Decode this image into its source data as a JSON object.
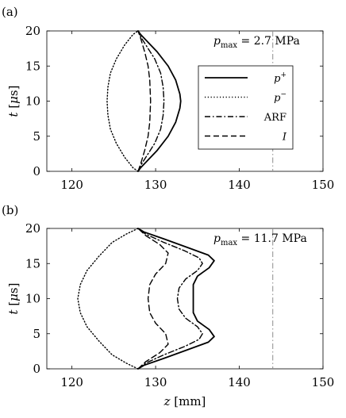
{
  "chart_data": [
    {
      "panel_label": "(a)",
      "type": "line",
      "annotation": "p_max = 2.7 MPa",
      "annotation_parts": {
        "sym": "p",
        "sub": "max",
        "rest": " = 2.7 MPa"
      },
      "xlabel": "z [mm]",
      "ylabel": "t [μs]",
      "xlim": [
        117,
        150
      ],
      "ylim": [
        0,
        20
      ],
      "xticks": [
        120,
        130,
        140,
        150
      ],
      "yticks": [
        0,
        5,
        10,
        15,
        20
      ],
      "reference_line_x": 144,
      "legend": {
        "placement": "right",
        "entries": [
          {
            "label": "p+",
            "sym": "p",
            "sup": "+"
          },
          {
            "label": "p−",
            "sym": "p",
            "sup": "−"
          },
          {
            "label": "ARF"
          },
          {
            "label": "I",
            "italic": true
          }
        ]
      },
      "series": [
        {
          "name": "p+",
          "style": "solid",
          "points": [
            [
              127.9,
              0
            ],
            [
              128.2,
              0.5
            ],
            [
              129.0,
              1.5
            ],
            [
              130.2,
              3
            ],
            [
              131.5,
              5
            ],
            [
              132.4,
              7
            ],
            [
              132.9,
              9
            ],
            [
              133.0,
              10
            ],
            [
              132.9,
              11
            ],
            [
              132.4,
              13
            ],
            [
              131.5,
              15
            ],
            [
              130.2,
              17
            ],
            [
              129.0,
              18.5
            ],
            [
              128.2,
              19.5
            ],
            [
              127.9,
              20
            ]
          ]
        },
        {
          "name": "p−",
          "style": "dotted",
          "points": [
            [
              127.9,
              0
            ],
            [
              127.3,
              0.5
            ],
            [
              126.3,
              2
            ],
            [
              125.3,
              4
            ],
            [
              124.6,
              6
            ],
            [
              124.3,
              8
            ],
            [
              124.2,
              10
            ],
            [
              124.3,
              12
            ],
            [
              124.6,
              14
            ],
            [
              125.3,
              16
            ],
            [
              126.3,
              18
            ],
            [
              127.3,
              19.5
            ],
            [
              127.9,
              20
            ]
          ]
        },
        {
          "name": "ARF",
          "style": "dashdot",
          "points": [
            [
              127.9,
              0
            ],
            [
              128.3,
              1
            ],
            [
              129.1,
              2.5
            ],
            [
              129.9,
              4
            ],
            [
              130.6,
              6
            ],
            [
              130.9,
              8
            ],
            [
              131.0,
              10
            ],
            [
              130.9,
              12
            ],
            [
              130.6,
              14
            ],
            [
              129.9,
              16
            ],
            [
              129.1,
              17.5
            ],
            [
              128.3,
              19
            ],
            [
              127.9,
              20
            ]
          ]
        },
        {
          "name": "I",
          "style": "dashed",
          "points": [
            [
              127.9,
              0
            ],
            [
              128.2,
              1
            ],
            [
              128.7,
              3
            ],
            [
              129.1,
              5
            ],
            [
              129.3,
              7
            ],
            [
              129.4,
              10
            ],
            [
              129.3,
              13
            ],
            [
              129.1,
              15
            ],
            [
              128.7,
              17
            ],
            [
              128.2,
              19
            ],
            [
              127.9,
              20
            ]
          ]
        }
      ]
    },
    {
      "panel_label": "(b)",
      "type": "line",
      "annotation": "p_max = 11.7 MPa",
      "annotation_parts": {
        "sym": "p",
        "sub": "max",
        "rest": " = 11.7 MPa"
      },
      "xlabel": "z [mm]",
      "ylabel": "t [μs]",
      "xlim": [
        117,
        150
      ],
      "ylim": [
        0,
        20
      ],
      "xticks": [
        120,
        130,
        140,
        150
      ],
      "yticks": [
        0,
        5,
        10,
        15,
        20
      ],
      "reference_line_x": 144,
      "series": [
        {
          "name": "p+",
          "style": "solid",
          "points": [
            [
              127.9,
              0
            ],
            [
              128.6,
              0.5
            ],
            [
              131.0,
              1.5
            ],
            [
              134.0,
              2.8
            ],
            [
              136.3,
              3.8
            ],
            [
              137.0,
              4.6
            ],
            [
              136.4,
              5.6
            ],
            [
              135.0,
              6.8
            ],
            [
              134.5,
              8
            ],
            [
              134.5,
              12
            ],
            [
              135.0,
              13.2
            ],
            [
              136.4,
              14.4
            ],
            [
              137.0,
              15.4
            ],
            [
              136.3,
              16.2
            ],
            [
              134.0,
              17.2
            ],
            [
              131.0,
              18.5
            ],
            [
              128.6,
              19.5
            ],
            [
              127.9,
              20
            ]
          ]
        },
        {
          "name": "p−",
          "style": "dotted",
          "points": [
            [
              127.9,
              0
            ],
            [
              126.5,
              0.8
            ],
            [
              124.8,
              2
            ],
            [
              123.2,
              4
            ],
            [
              121.8,
              6
            ],
            [
              121.0,
              8
            ],
            [
              120.7,
              10
            ],
            [
              121.0,
              12
            ],
            [
              121.8,
              14
            ],
            [
              123.2,
              16
            ],
            [
              124.8,
              18
            ],
            [
              126.5,
              19.2
            ],
            [
              127.9,
              20
            ]
          ]
        },
        {
          "name": "ARF",
          "style": "dashdot",
          "points": [
            [
              127.9,
              0
            ],
            [
              128.8,
              0.8
            ],
            [
              131.0,
              2
            ],
            [
              133.5,
              3.2
            ],
            [
              135.2,
              4.2
            ],
            [
              135.6,
              5
            ],
            [
              135.0,
              6
            ],
            [
              133.6,
              7.2
            ],
            [
              132.8,
              8.5
            ],
            [
              132.6,
              10
            ],
            [
              132.8,
              11.5
            ],
            [
              133.6,
              12.8
            ],
            [
              135.0,
              14
            ],
            [
              135.6,
              15
            ],
            [
              135.2,
              15.8
            ],
            [
              133.5,
              16.8
            ],
            [
              131.0,
              18
            ],
            [
              128.8,
              19.2
            ],
            [
              127.9,
              20
            ]
          ]
        },
        {
          "name": "I",
          "style": "dashed",
          "points": [
            [
              127.9,
              0
            ],
            [
              128.8,
              1
            ],
            [
              130.5,
              2.3
            ],
            [
              131.5,
              3.5
            ],
            [
              131.2,
              5
            ],
            [
              130.0,
              6.5
            ],
            [
              129.3,
              8
            ],
            [
              129.1,
              10
            ],
            [
              129.3,
              12
            ],
            [
              130.0,
              13.5
            ],
            [
              131.2,
              15
            ],
            [
              131.5,
              16.5
            ],
            [
              130.5,
              17.7
            ],
            [
              128.8,
              19
            ],
            [
              127.9,
              20
            ]
          ]
        }
      ]
    }
  ]
}
